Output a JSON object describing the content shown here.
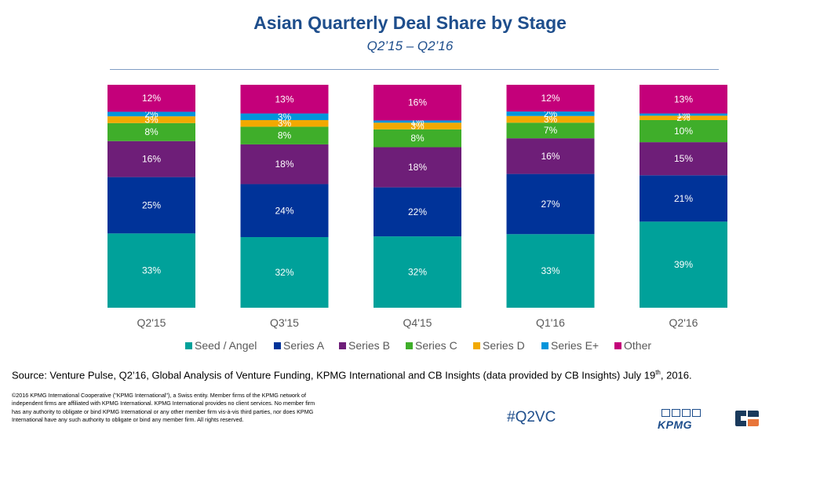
{
  "header": {
    "title": "Asian Quarterly Deal Share by Stage",
    "subtitle": "Q2’15 – Q2’16"
  },
  "chart_data": {
    "type": "bar",
    "stacked": true,
    "categories": [
      "Q2'15",
      "Q3'15",
      "Q4'15",
      "Q1'16",
      "Q2'16"
    ],
    "series": [
      {
        "name": "Seed / Angel",
        "color": "#00a19a",
        "values": [
          33,
          32,
          32,
          33,
          39
        ]
      },
      {
        "name": "Series A",
        "color": "#003399",
        "values": [
          25,
          24,
          22,
          27,
          21
        ]
      },
      {
        "name": "Series B",
        "color": "#6e1e78",
        "values": [
          16,
          18,
          18,
          16,
          15
        ]
      },
      {
        "name": "Series C",
        "color": "#3fae2a",
        "values": [
          8,
          8,
          8,
          7,
          10
        ]
      },
      {
        "name": "Series D",
        "color": "#f2a900",
        "values": [
          3,
          3,
          3,
          3,
          2
        ]
      },
      {
        "name": "Series E+",
        "color": "#0095db",
        "values": [
          2,
          3,
          1,
          2,
          1
        ]
      },
      {
        "name": "Other",
        "color": "#c4007a",
        "values": [
          12,
          13,
          16,
          12,
          13
        ]
      }
    ],
    "value_suffix": "%",
    "title": "Asian Quarterly Deal Share by Stage",
    "subtitle": "Q2’15 – Q2’16",
    "ylim": [
      0,
      100
    ],
    "legend_position": "bottom"
  },
  "footer": {
    "source_text": "Source: Venture Pulse, Q2’16, Global Analysis of Venture Funding, KPMG International and CB Insights (data provided by CB Insights) July 19",
    "source_sup": "th",
    "source_end": ", 2016.",
    "copyright": "©2016 KPMG International Cooperative (\"KPMG International\"), a Swiss entity. Member firms of the KPMG network of independent firms are affiliated with KPMG International. KPMG International provides no client services. No member firm has any authority to obligate or bind KPMG International or any other member firm vis-à-vis third parties, nor does KPMG International have any such authority to obligate or bind any member firm. All rights reserved.",
    "hashtag": "#Q2VC",
    "kpmg_logo_text": "KPMG"
  }
}
